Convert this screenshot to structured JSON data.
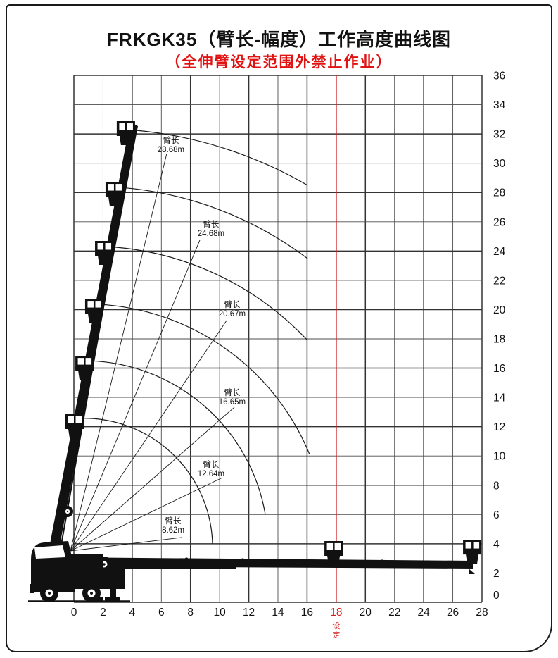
{
  "window": {
    "title": "FRKGK35（臂长-幅度）工作高度曲线图",
    "subtitle": "（全伸臂设定范围外禁止作业）"
  },
  "chart_data": {
    "type": "line",
    "title": "FRKGK35（臂长-幅度）工作高度曲线图",
    "subtitle": "（全伸臂设定范围外禁止作业）",
    "grid": true,
    "x_axis": {
      "range": [
        0,
        28
      ],
      "step": 2,
      "ticks": [
        0,
        2,
        4,
        6,
        8,
        10,
        12,
        14,
        16,
        18,
        20,
        22,
        24,
        26,
        28
      ],
      "side": "bottom"
    },
    "y_axis": {
      "range": [
        0,
        36
      ],
      "step": 2,
      "ticks": [
        36,
        34,
        32,
        30,
        28,
        26,
        24,
        22,
        20,
        18,
        16,
        14,
        12,
        10,
        8,
        6,
        4,
        2,
        0
      ],
      "side": "right"
    },
    "setting_line": {
      "x": 18,
      "tick": "18",
      "label": "设定",
      "color": "#d22020"
    },
    "boom_pivot_xy": [
      0,
      4.43
    ],
    "boom_curves": [
      {
        "name": "臂长",
        "length": "28.68m",
        "arc_start_xy": [
          4.2,
          32.25
        ],
        "arc_end_xy": [
          16.03,
          28.49
        ],
        "label_xy": [
          6.66,
          31.23
        ],
        "leader_end_xy": [
          6.37,
          30.66
        ]
      },
      {
        "name": "臂长",
        "length": "24.68m",
        "arc_start_xy": [
          3.14,
          28.35
        ],
        "arc_end_xy": [
          16.03,
          23.49
        ],
        "label_xy": [
          9.41,
          25.51
        ],
        "leader_end_xy": [
          8.64,
          24.74
        ]
      },
      {
        "name": "臂长",
        "length": "20.67m",
        "arc_start_xy": [
          2.32,
          24.3
        ],
        "arc_end_xy": [
          16.03,
          17.9
        ],
        "label_xy": [
          10.86,
          20.02
        ],
        "leader_end_xy": [
          10.48,
          19.25
        ]
      },
      {
        "name": "臂长",
        "length": "16.65m",
        "arc_start_xy": [
          1.64,
          20.36
        ],
        "arc_end_xy": [
          16.17,
          10.11
        ],
        "label_xy": [
          10.86,
          14.0
        ],
        "leader_end_xy": [
          11.01,
          13.33
        ]
      },
      {
        "name": "臂长",
        "length": "12.64m",
        "arc_start_xy": [
          0.92,
          16.51
        ],
        "arc_end_xy": [
          13.13,
          6.02
        ],
        "label_xy": [
          9.41,
          9.1
        ],
        "leader_end_xy": [
          10.19,
          8.52
        ]
      },
      {
        "name": "臂长",
        "length": "8.62m",
        "arc_start_xy": [
          0.19,
          12.56
        ],
        "arc_end_xy": [
          9.51,
          3.99
        ],
        "label_xy": [
          6.81,
          5.25
        ],
        "leader_end_xy": [
          7.39,
          4.43
        ]
      }
    ],
    "raised_boom_basket_positions_xy": [
      [
        2.94,
        32.87
      ],
      [
        2.17,
        28.73
      ],
      [
        1.45,
        24.69
      ],
      [
        0.77,
        20.74
      ],
      [
        0.1,
        16.84
      ],
      [
        -0.58,
        12.85
      ]
    ],
    "horizontal_boom_basket_positions_xy": [
      [
        17.19,
        4.19
      ],
      [
        26.7,
        4.28
      ]
    ],
    "colors": {
      "line": "#1a1a1a",
      "grid_minor": "#4d4d4d",
      "grid_major": "#333333",
      "setting": "#d22020",
      "text": "#111111"
    }
  }
}
